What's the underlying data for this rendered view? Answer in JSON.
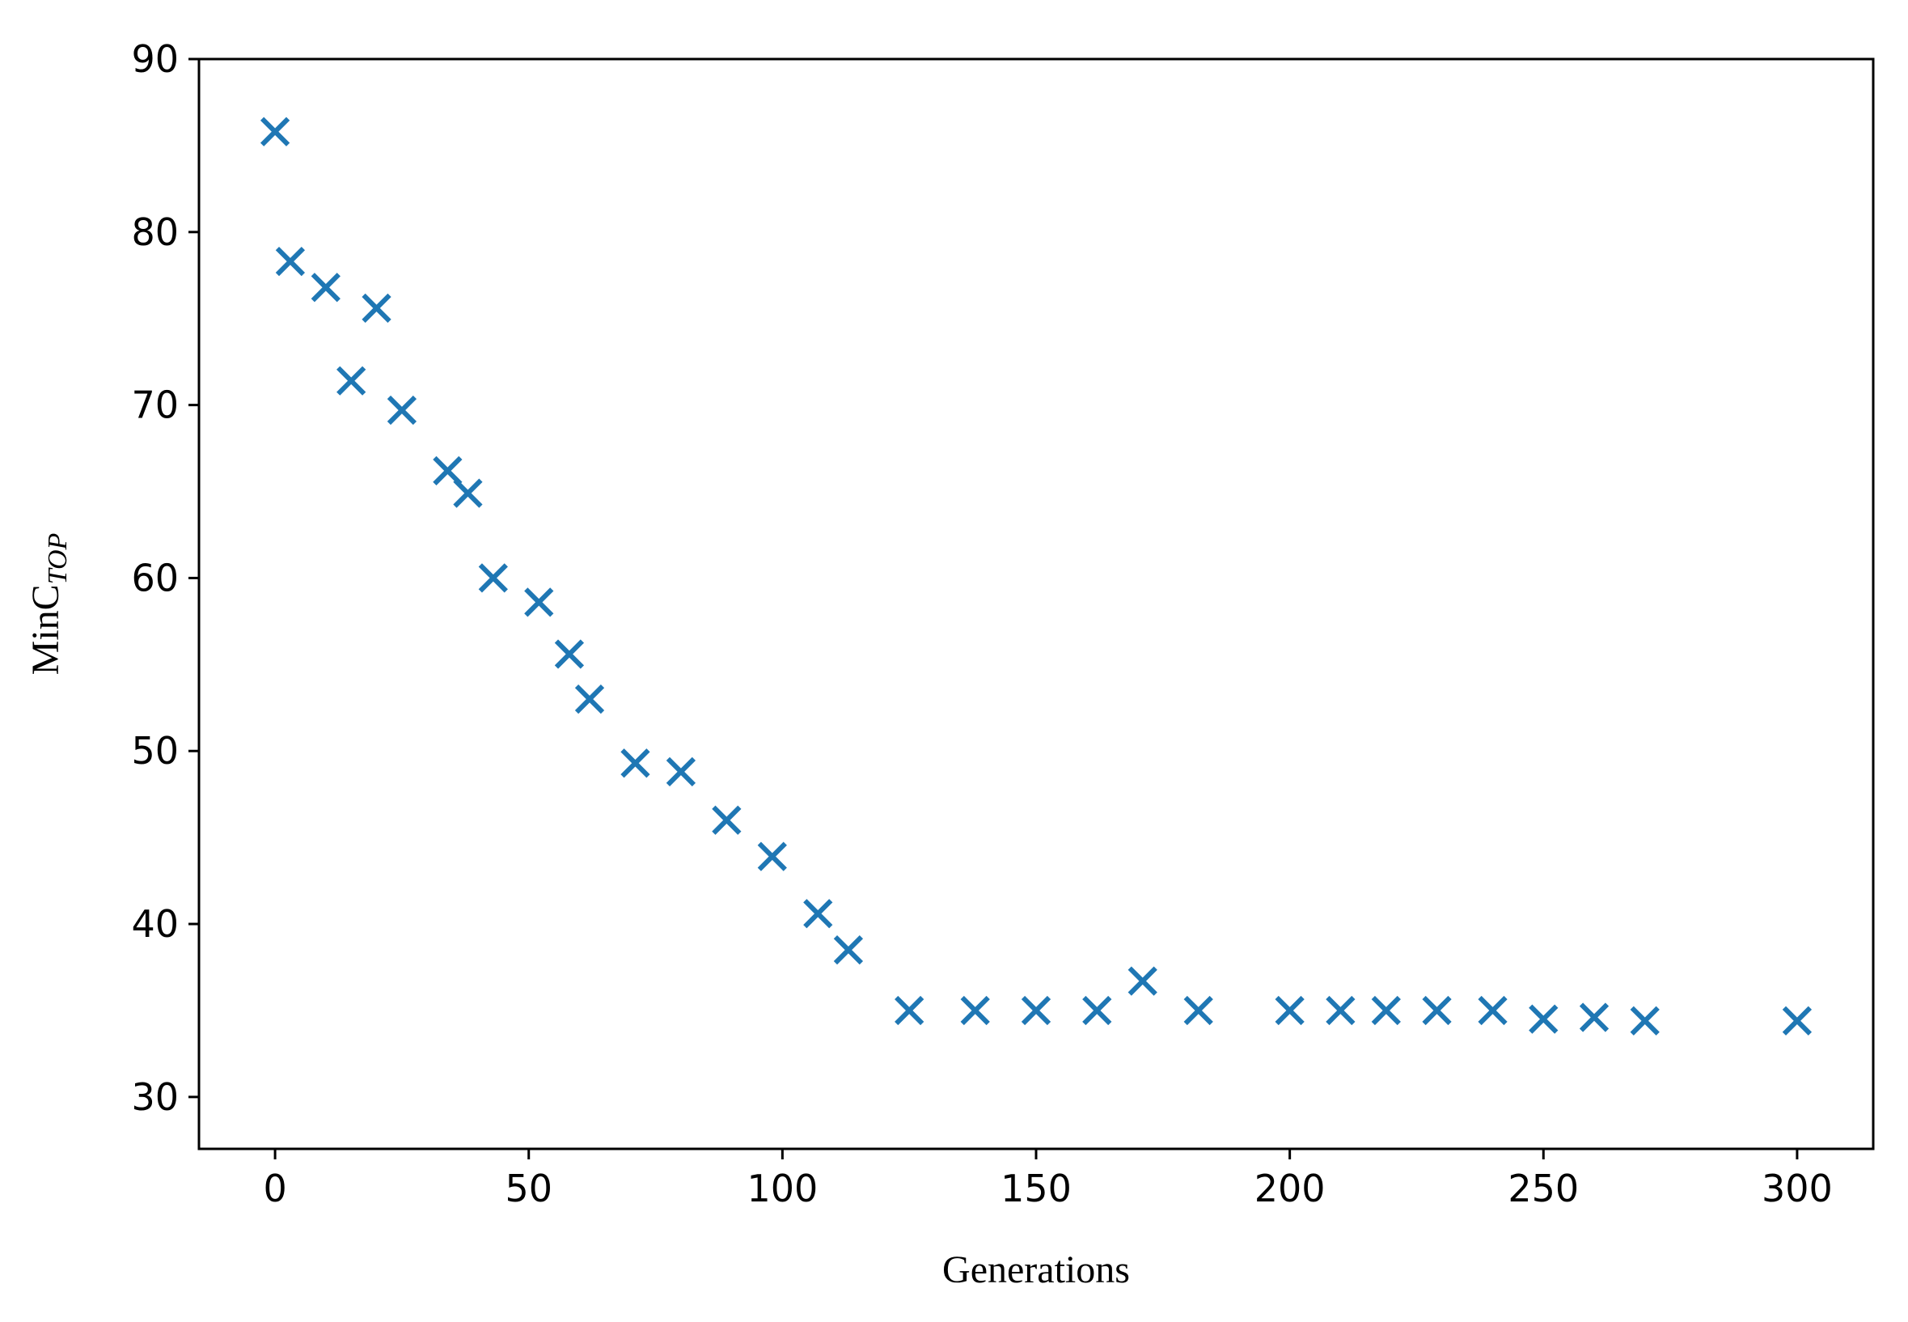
{
  "chart_data": {
    "type": "scatter",
    "title": "",
    "xlabel": "Generations",
    "ylabel": "MinC",
    "ylabel_subscript": "TOP",
    "xlim": [
      -15,
      315
    ],
    "ylim": [
      27,
      90
    ],
    "xticks": [
      0,
      50,
      100,
      150,
      200,
      250,
      300
    ],
    "yticks": [
      30,
      40,
      50,
      60,
      70,
      80,
      90
    ],
    "grid": false,
    "marker": "x",
    "colors": {
      "series": "#1f77b4",
      "axes": "#000000",
      "background": "#ffffff"
    },
    "series": [
      {
        "x": [
          0,
          3,
          10,
          15,
          20,
          25,
          34,
          38,
          43,
          52,
          58,
          62,
          71,
          80,
          89,
          98,
          107,
          113,
          125,
          138,
          150,
          162,
          171,
          182,
          200,
          210,
          219,
          229,
          240,
          250,
          260,
          270,
          300
        ],
        "y": [
          85.8,
          78.3,
          76.8,
          71.4,
          75.6,
          69.7,
          66.2,
          64.9,
          60.0,
          58.6,
          55.6,
          53.0,
          49.3,
          48.8,
          46.0,
          43.9,
          40.6,
          38.5,
          35.0,
          35.0,
          35.0,
          35.0,
          36.7,
          35.0,
          35.0,
          35.0,
          35.0,
          35.0,
          35.0,
          34.5,
          34.6,
          34.4,
          34.4
        ]
      }
    ]
  }
}
